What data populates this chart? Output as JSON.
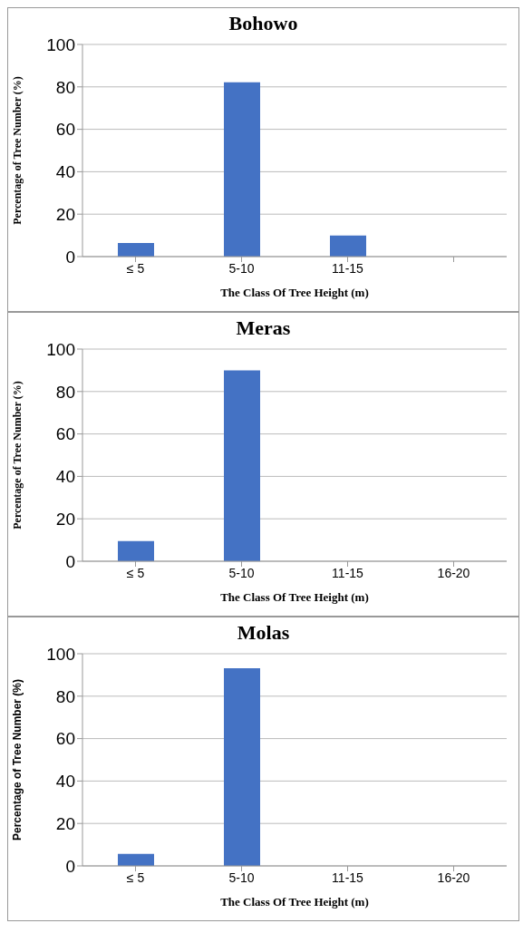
{
  "chart_data": [
    {
      "type": "bar",
      "title": "Bohowo",
      "xlabel": "The Class Of Tree Height (m)",
      "ylabel": "Percentage of Tree Number (%)",
      "categories": [
        "≤ 5",
        "5-10",
        "11-15",
        null
      ],
      "values": [
        6.4,
        82.2,
        9.9,
        null
      ],
      "color": "#4472c4",
      "ylim": [
        0,
        100
      ],
      "yticks": [
        0,
        20,
        40,
        60,
        80,
        100
      ],
      "grid": "y"
    },
    {
      "type": "bar",
      "title": "Meras",
      "xlabel": "The Class Of Tree Height (m)",
      "ylabel": "Percentage of Tree Number (%)",
      "categories": [
        "≤ 5",
        "5-10",
        "11-15",
        "16-20"
      ],
      "values": [
        9.5,
        90,
        0,
        0
      ],
      "color": "#4472c4",
      "ylim": [
        0,
        100
      ],
      "yticks": [
        0,
        20,
        40,
        60,
        80,
        100
      ],
      "grid": "y"
    },
    {
      "type": "bar",
      "title": "Molas",
      "xlabel": "The Class Of Tree Height (m)",
      "ylabel": "Percentage of Tree Number (%)",
      "categories": [
        "≤ 5",
        "5-10",
        "11-15",
        "16-20"
      ],
      "values": [
        5.7,
        93.2,
        0,
        0
      ],
      "color": "#4472c4",
      "ylim": [
        0,
        100
      ],
      "yticks": [
        0,
        20,
        40,
        60,
        80,
        100
      ],
      "grid": "y"
    }
  ]
}
